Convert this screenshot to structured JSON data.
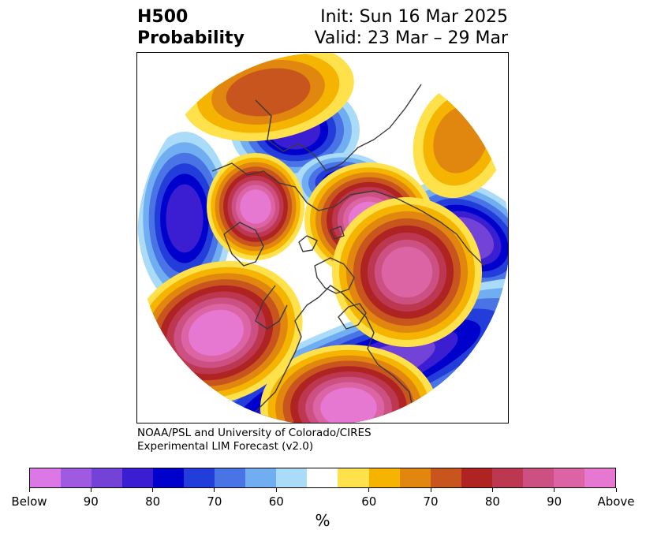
{
  "title": {
    "left_line1": "H500",
    "left_line2": "Probability",
    "right_line1": "Init: Sun 16 Mar 2025",
    "right_line2": "Valid: 23 Mar – 29 Mar"
  },
  "credit": {
    "line1": "NOAA/PSL and University of Colorado/CIRES",
    "line2": "Experimental LIM Forecast (v2.0)"
  },
  "colorbar": {
    "colors": [
      "#dc78e6",
      "#a05ae1",
      "#7342d6",
      "#3c1ed2",
      "#0000cd",
      "#233ddb",
      "#4a74e5",
      "#70aef1",
      "#aadcfa",
      "#ffffff",
      "#ffe14b",
      "#f5b400",
      "#e1870f",
      "#c8551e",
      "#af2323",
      "#be3750",
      "#cd5082",
      "#dc64a5",
      "#e678d2"
    ],
    "labels": [
      "Below",
      "90",
      "80",
      "70",
      "60",
      "60",
      "70",
      "80",
      "90",
      "Above"
    ],
    "unit": "%"
  },
  "map": {
    "anomalies": [
      {
        "sign": "above",
        "level": 9,
        "shape": "pacific-high"
      },
      {
        "sign": "above",
        "level": 9,
        "shape": "hudson-high"
      },
      {
        "sign": "above",
        "level": 9,
        "shape": "siberia-high"
      },
      {
        "sign": "above",
        "level": 9,
        "shape": "gulf-high"
      },
      {
        "sign": "above",
        "level": 8,
        "shape": "scandinavia-high"
      },
      {
        "sign": "above",
        "level": 4,
        "shape": "asia-high"
      },
      {
        "sign": "above",
        "level": 3,
        "shape": "europe-ne-high"
      },
      {
        "sign": "below",
        "level": 7,
        "shape": "atlantic-low"
      },
      {
        "sign": "below",
        "level": 6,
        "shape": "east-asia-low"
      },
      {
        "sign": "below",
        "level": 6,
        "shape": "greenland-low"
      },
      {
        "sign": "below",
        "level": 7,
        "shape": "us-low"
      },
      {
        "sign": "below",
        "level": 5,
        "shape": "north-pacific-low"
      }
    ]
  }
}
